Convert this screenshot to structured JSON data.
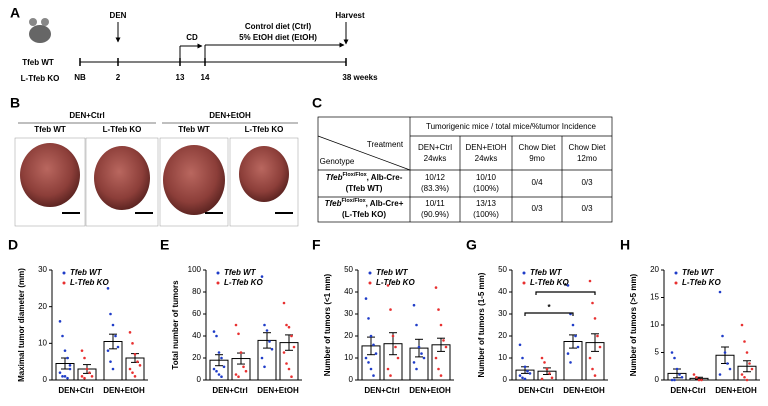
{
  "panel_labels": [
    "A",
    "B",
    "C",
    "D",
    "E",
    "F",
    "G",
    "H"
  ],
  "timeline": {
    "genotypes": [
      "Tfeb WT",
      "L-Tfeb KO"
    ],
    "events": [
      "DEN",
      "CD",
      "Harvest"
    ],
    "diets": [
      "Control diet (Ctrl)",
      "5% EtOH diet (EtOH)"
    ],
    "ticks": [
      "NB",
      "2",
      "13",
      "14",
      "38 weeks"
    ]
  },
  "photos": {
    "groups": [
      "DEN+Ctrl",
      "DEN+EtOH"
    ],
    "labels": [
      "Tfeb WT",
      "L-Tfeb KO",
      "Tfeb WT",
      "L-Tfeb KO"
    ]
  },
  "table": {
    "header": "Tumorigenic mice / total mice/%tumor Incidence",
    "corner": [
      "Treatment",
      "Genotype"
    ],
    "columns": [
      [
        "DEN+Ctrl",
        "24wks"
      ],
      [
        "DEN+EtOH",
        "24wks"
      ],
      [
        "Chow Diet",
        "9mo"
      ],
      [
        "Chow Diet",
        "12mo"
      ]
    ],
    "rows": [
      {
        "genotype": [
          "Tfeb",
          "Flox/Flox",
          ", Alb-Cre-",
          "(Tfeb WT)"
        ],
        "cells": [
          [
            "10/12",
            "(83.3%)"
          ],
          [
            "10/10",
            "(100%)"
          ],
          [
            "0/4"
          ],
          [
            "0/3"
          ]
        ]
      },
      {
        "genotype": [
          "Tfeb",
          "Flox/Flox",
          ", Alb-Cre+",
          "(L-Tfeb KO)"
        ],
        "cells": [
          [
            "10/11",
            "(90.9%)"
          ],
          [
            "13/13",
            "(100%)"
          ],
          [
            "0/3"
          ],
          [
            "0/3"
          ]
        ]
      }
    ]
  },
  "chart_data": [
    {
      "type": "bar",
      "ylabel": "Maximal tumor diameter (mm)",
      "categories": [
        "DEN+Ctrl",
        "DEN+EtOH"
      ],
      "ylim": [
        0,
        30
      ],
      "yticks": [
        0,
        10,
        20,
        30
      ],
      "series": [
        {
          "name": "Tfeb WT",
          "color": "#1f3cc8",
          "values": [
            4.5,
            10.5
          ],
          "errors": [
            1.5,
            2
          ],
          "points": [
            [
              16,
              12,
              8,
              6,
              4,
              2,
              1,
              1,
              0.5,
              3
            ],
            [
              25,
              18,
              15,
              12,
              9,
              8,
              5,
              3
            ]
          ]
        },
        {
          "name": "L-Tfeb KO",
          "color": "#e83030",
          "values": [
            3,
            6
          ],
          "errors": [
            1.2,
            1.2
          ],
          "points": [
            [
              8,
              6,
              3,
              2,
              1,
              1,
              0.5
            ],
            [
              13,
              10,
              7,
              5,
              4,
              3,
              2,
              1
            ]
          ]
        }
      ]
    },
    {
      "type": "bar",
      "ylabel": "Total number of tumors",
      "categories": [
        "DEN+Ctrl",
        "DEN+EtOH"
      ],
      "ylim": [
        0,
        100
      ],
      "yticks": [
        0,
        20,
        40,
        60,
        80,
        100
      ],
      "series": [
        {
          "name": "Tfeb WT",
          "color": "#1f3cc8",
          "values": [
            18,
            36
          ],
          "errors": [
            5,
            7
          ],
          "points": [
            [
              44,
              40,
              25,
              20,
              12,
              10,
              8,
              5,
              3
            ],
            [
              94,
              50,
              45,
              35,
              28,
              20,
              12
            ]
          ]
        },
        {
          "name": "L-Tfeb KO",
          "color": "#e83030",
          "values": [
            19.5,
            34
          ],
          "errors": [
            5,
            7
          ],
          "points": [
            [
              50,
              42,
              25,
              12,
              8,
              5,
              3
            ],
            [
              70,
              50,
              48,
              40,
              30,
              25,
              15,
              10,
              3
            ]
          ]
        }
      ]
    },
    {
      "type": "bar",
      "ylabel": "Number of tumors (<1 mm)",
      "categories": [
        "DEN+Ctrl",
        "DEN+EtOH"
      ],
      "ylim": [
        0,
        50
      ],
      "yticks": [
        0,
        10,
        20,
        30,
        40,
        50
      ],
      "series": [
        {
          "name": "Tfeb WT",
          "color": "#1f3cc8",
          "values": [
            15.5,
            14.5
          ],
          "errors": [
            4,
            4
          ],
          "points": [
            [
              37,
              28,
              20,
              16,
              12,
              10,
              8,
              5,
              2
            ],
            [
              34,
              25,
              15,
              12,
              10,
              8,
              5
            ]
          ]
        },
        {
          "name": "L-Tfeb KO",
          "color": "#e83030",
          "values": [
            16.5,
            16
          ],
          "errors": [
            5,
            3
          ],
          "points": [
            [
              43,
              32,
              20,
              15,
              10,
              5,
              2
            ],
            [
              42,
              32,
              25,
              18,
              15,
              10,
              5,
              2
            ]
          ]
        }
      ]
    },
    {
      "type": "bar",
      "ylabel": "Number of tumors (1-5 mm)",
      "categories": [
        "DEN+Ctrl",
        "DEN+EtOH"
      ],
      "ylim": [
        0,
        50
      ],
      "yticks": [
        0,
        10,
        20,
        30,
        40,
        50
      ],
      "significance_labels": [
        "*",
        "*"
      ],
      "series": [
        {
          "name": "Tfeb WT",
          "color": "#1f3cc8",
          "values": [
            4.5,
            17.5
          ],
          "errors": [
            1.5,
            3
          ],
          "points": [
            [
              16,
              10,
              6,
              4,
              3,
              2,
              1,
              0.5
            ],
            [
              43,
              30,
              25,
              20,
              15,
              12,
              8
            ]
          ]
        },
        {
          "name": "L-Tfeb KO",
          "color": "#e83030",
          "values": [
            4,
            17
          ],
          "errors": [
            1.5,
            4
          ],
          "points": [
            [
              10,
              8,
              5,
              3,
              1,
              0.5
            ],
            [
              45,
              35,
              28,
              20,
              15,
              10,
              5,
              2
            ]
          ]
        }
      ]
    },
    {
      "type": "bar",
      "ylabel": "Number of tumors (>5 mm)",
      "categories": [
        "DEN+Ctrl",
        "DEN+EtOH"
      ],
      "ylim": [
        0,
        20
      ],
      "yticks": [
        0,
        5,
        10,
        15,
        20
      ],
      "series": [
        {
          "name": "Tfeb WT",
          "color": "#1f3cc8",
          "values": [
            1.2,
            4.5
          ],
          "errors": [
            0.8,
            1.5
          ],
          "points": [
            [
              5,
              4,
              2,
              1,
              0.5,
              0,
              0
            ],
            [
              16,
              8,
              5,
              3,
              2,
              1
            ]
          ]
        },
        {
          "name": "L-Tfeb KO",
          "color": "#e83030",
          "values": [
            0.3,
            2.5
          ],
          "errors": [
            0.2,
            1
          ],
          "points": [
            [
              1,
              0.5,
              0,
              0
            ],
            [
              10,
              7,
              5,
              3,
              2,
              1,
              0.5,
              0
            ]
          ]
        }
      ]
    }
  ]
}
